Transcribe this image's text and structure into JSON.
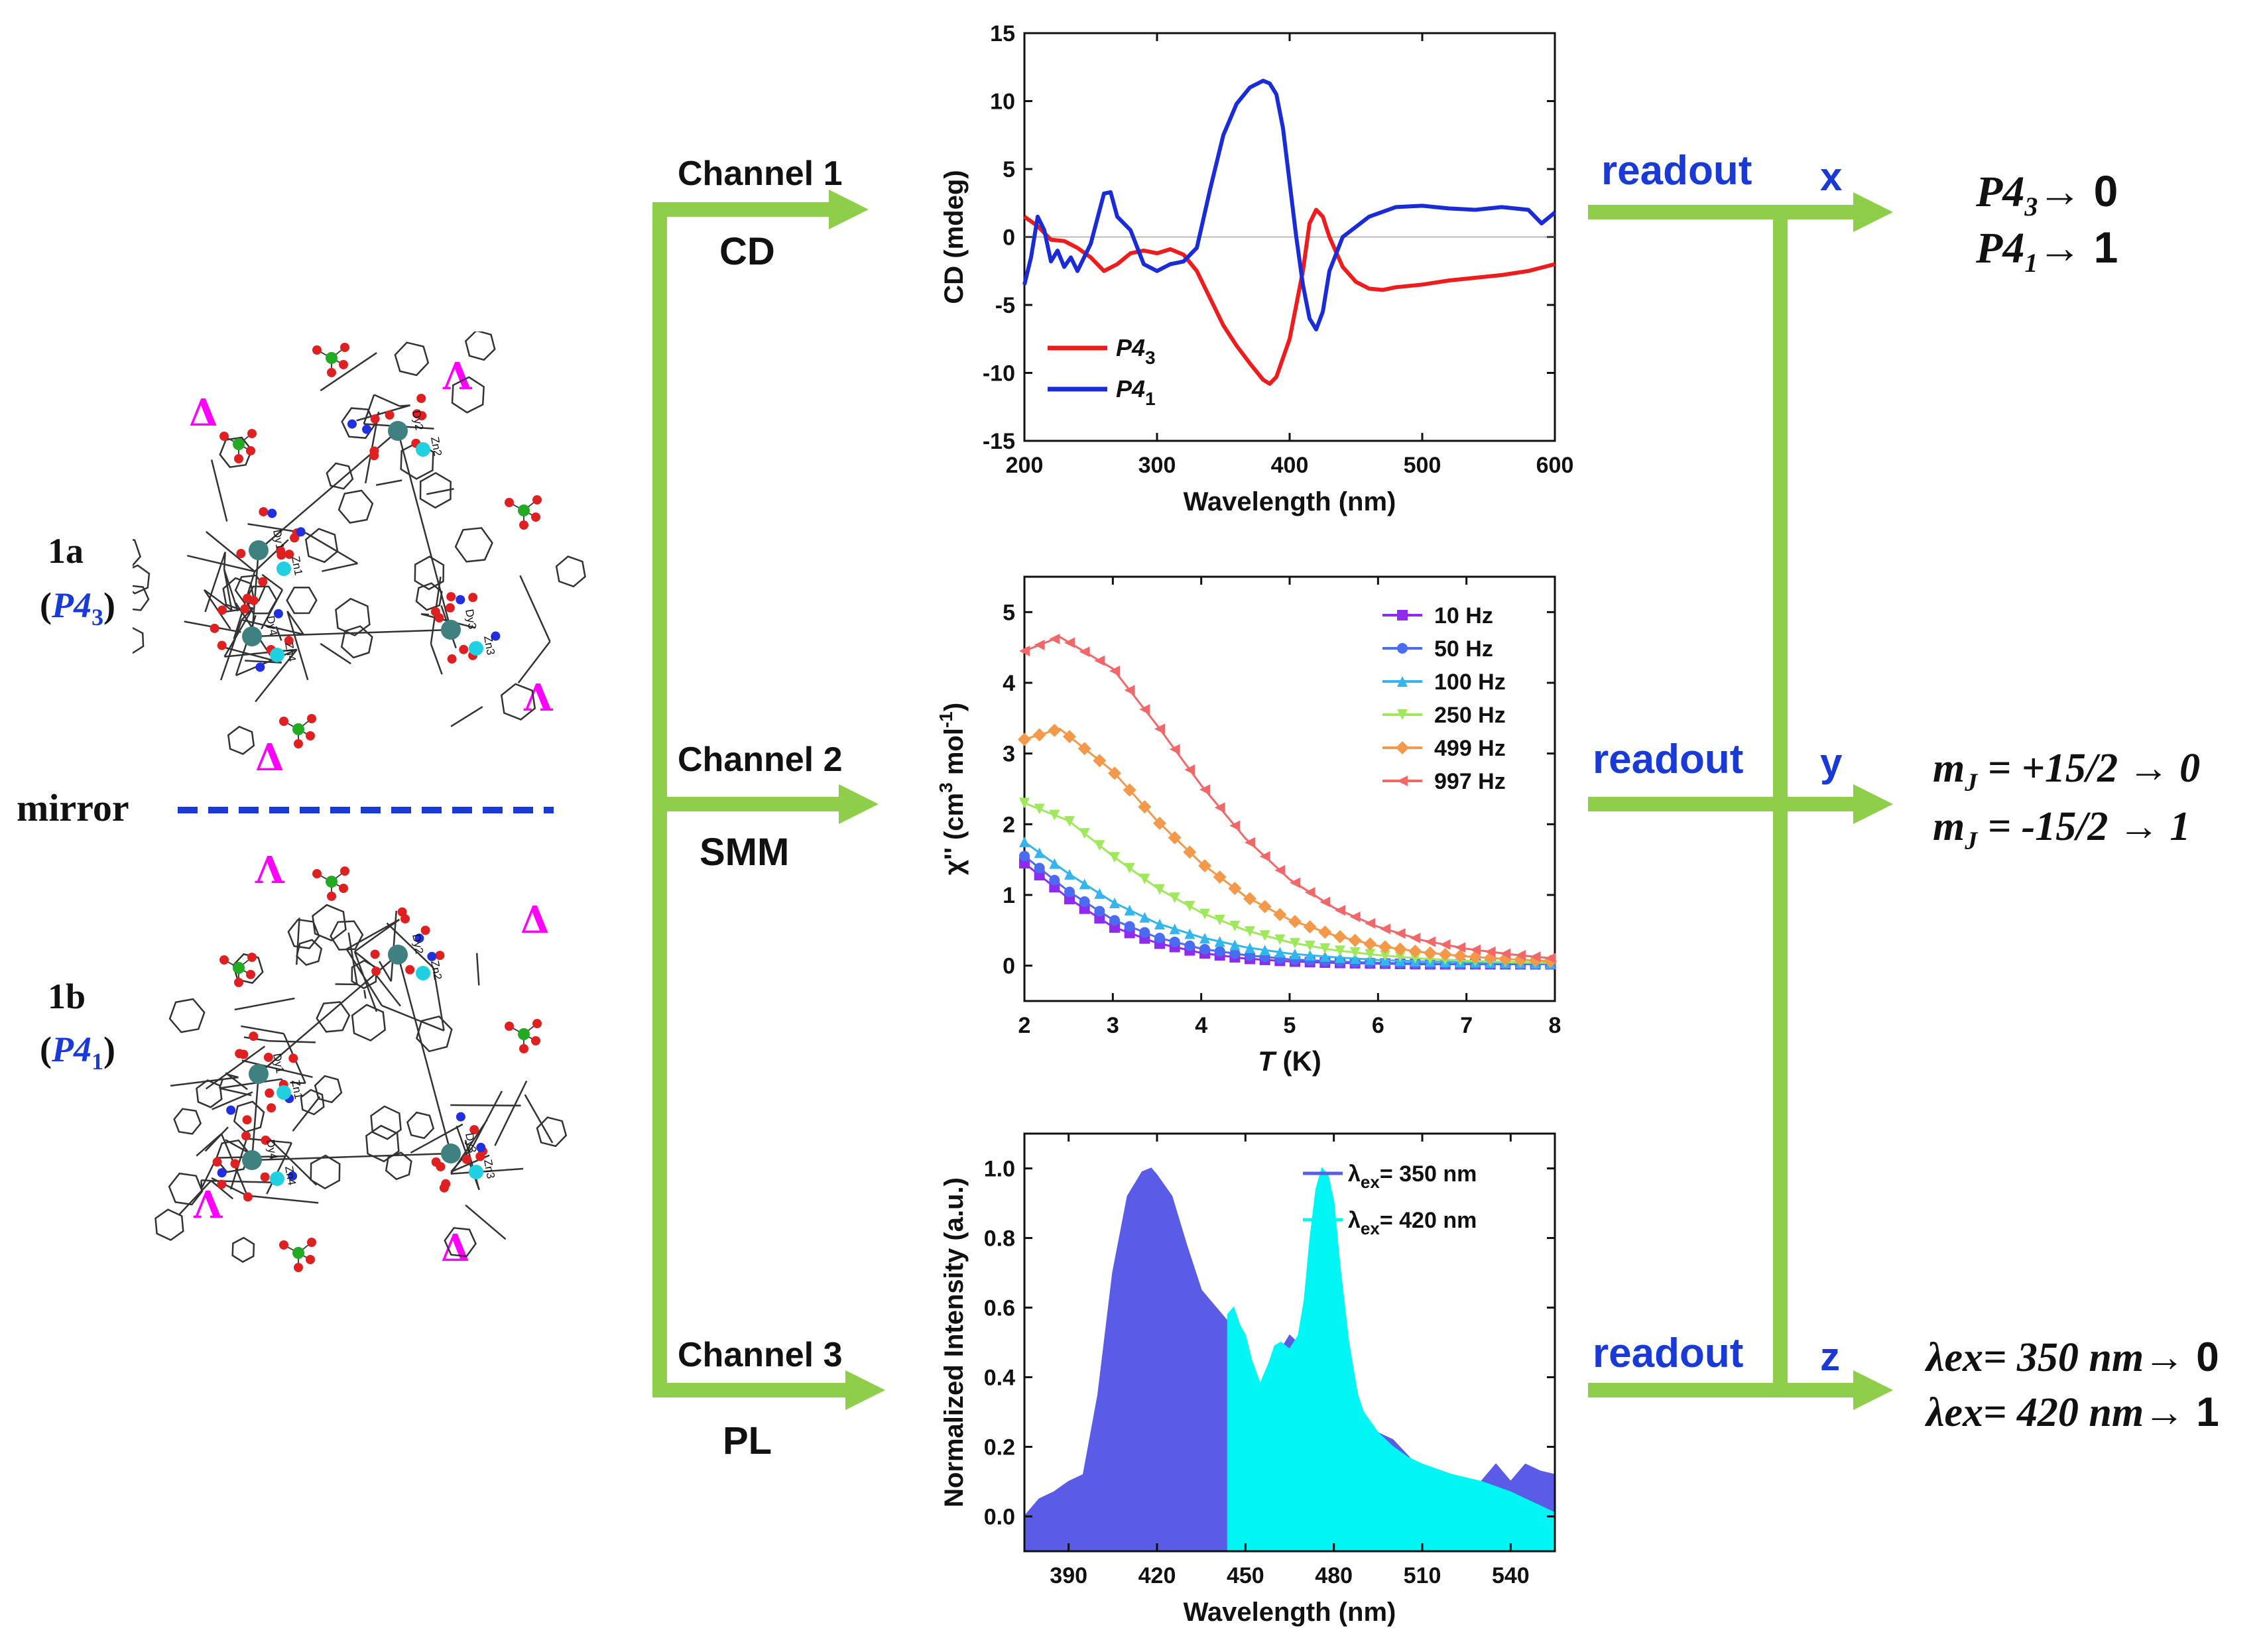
{
  "structures": {
    "label_1a": "1a",
    "space_group_1a_prefix": "(",
    "space_group_1a": "P4",
    "space_group_1a_sub": "3",
    "space_group_1a_suffix": ")",
    "label_1b": "1b",
    "space_group_1b_prefix": "(",
    "space_group_1b": "P4",
    "space_group_1b_sub": "1",
    "space_group_1b_suffix": ")",
    "mirror": "mirror",
    "delta": "Δ",
    "lambda": "Λ",
    "atom_labels_top": [
      "Dy1",
      "Dy2",
      "Dy3",
      "Dy4",
      "Zn1",
      "Zn2",
      "Zn3",
      "Zn4"
    ],
    "atom_labels_bottom": [
      "Dy1",
      "Dy2",
      "Dy3",
      "Dy4",
      "Zn1",
      "Zn2",
      "Zn3",
      "Zn4"
    ]
  },
  "channels": [
    {
      "name": "Channel 1",
      "technique": "CD"
    },
    {
      "name": "Channel 2",
      "technique": "SMM"
    },
    {
      "name": "Channel 3",
      "technique": "PL"
    }
  ],
  "readouts": [
    {
      "label": "readout",
      "variable": "x",
      "line1": "P4",
      "line1_sub": "3",
      "line1_value": "→ 0",
      "line2": "P4",
      "line2_sub": "1",
      "line2_value": "→ 1"
    },
    {
      "label": "readout",
      "variable": "y",
      "line1": "m",
      "line1_sub": "J",
      "line1_value": " = +15/2 → 0",
      "line2": "m",
      "line2_sub": "J",
      "line2_value": " = -15/2 → 1"
    },
    {
      "label": "readout",
      "variable": "z",
      "line1": "λex= 350 nm",
      "line1_sub": "",
      "line1_value": "→ 0",
      "line2": "λex= 420 nm",
      "line2_sub": "",
      "line2_value": "→ 1"
    }
  ],
  "colors": {
    "arrow": "#8fce4a",
    "blue_text": "#1a3ad8",
    "magenta": "#ff00ff"
  },
  "chart_data": [
    {
      "type": "line",
      "xlabel": "Wavelength (nm)",
      "ylabel": "CD (mdeg)",
      "xlim": [
        200,
        600
      ],
      "ylim": [
        -15,
        15
      ],
      "xticks": [
        200,
        300,
        400,
        500,
        600
      ],
      "yticks": [
        -15,
        -10,
        -5,
        0,
        5,
        10,
        15
      ],
      "legend_position": "bottom-left",
      "series": [
        {
          "name": "P4",
          "name_sub": "3",
          "color": "#ee1c1c",
          "x": [
            200,
            210,
            220,
            230,
            240,
            250,
            260,
            270,
            280,
            290,
            300,
            310,
            320,
            330,
            340,
            350,
            360,
            370,
            380,
            385,
            390,
            400,
            410,
            415,
            420,
            425,
            430,
            440,
            450,
            460,
            470,
            480,
            500,
            520,
            540,
            560,
            580,
            600
          ],
          "y": [
            1.5,
            0.8,
            -0.2,
            -0.3,
            -0.8,
            -1.5,
            -2.5,
            -2.0,
            -1.2,
            -1.0,
            -1.2,
            -0.9,
            -1.3,
            -2.5,
            -4.5,
            -6.5,
            -8.0,
            -9.3,
            -10.5,
            -10.8,
            -10.3,
            -7.5,
            -2.5,
            1.0,
            2.0,
            1.5,
            0.0,
            -2.2,
            -3.3,
            -3.8,
            -3.9,
            -3.7,
            -3.5,
            -3.2,
            -3.0,
            -2.8,
            -2.5,
            -2.0
          ]
        },
        {
          "name": "P4",
          "name_sub": "1",
          "color": "#1a2bd8",
          "x": [
            200,
            205,
            210,
            215,
            220,
            225,
            230,
            235,
            240,
            250,
            260,
            265,
            270,
            280,
            290,
            300,
            310,
            320,
            330,
            340,
            350,
            360,
            370,
            380,
            385,
            390,
            395,
            400,
            405,
            410,
            415,
            420,
            425,
            430,
            440,
            460,
            480,
            500,
            520,
            540,
            560,
            580,
            590,
            600
          ],
          "y": [
            -3.5,
            -1.5,
            1.5,
            0.5,
            -1.8,
            -1.0,
            -2.2,
            -1.5,
            -2.5,
            -0.5,
            3.2,
            3.3,
            1.5,
            0.5,
            -2.0,
            -2.5,
            -2.0,
            -1.8,
            -0.8,
            3.5,
            7.5,
            9.8,
            11.0,
            11.5,
            11.3,
            10.5,
            8.0,
            4.0,
            0.0,
            -3.5,
            -6.0,
            -6.8,
            -5.5,
            -2.5,
            0.0,
            1.5,
            2.2,
            2.3,
            2.1,
            2.0,
            2.2,
            2.0,
            1.0,
            1.8
          ]
        }
      ]
    },
    {
      "type": "line",
      "xlabel": "T (K)",
      "xlabel_italic": "T",
      "xlabel_rest": " (K)",
      "ylabel": "χ'' (cm³ mol⁻¹)",
      "ylabel_main": "χ'' (cm",
      "ylabel_sup1": "3",
      "ylabel_mid": " mol",
      "ylabel_sup2": "-1",
      "ylabel_end": ")",
      "xlim": [
        2,
        8
      ],
      "ylim": [
        -0.5,
        5.5
      ],
      "xticks": [
        2,
        3,
        4,
        5,
        6,
        7,
        8
      ],
      "yticks": [
        0,
        1,
        2,
        3,
        4,
        5
      ],
      "legend_position": "top-right",
      "series": [
        {
          "name": "10 Hz",
          "color": "#8f2bef",
          "marker": "square",
          "x": [
            2.0,
            2.5,
            3.0,
            3.5,
            4.0,
            4.5,
            5.0,
            5.5,
            6.0,
            6.5,
            7.0,
            7.5,
            8.0
          ],
          "y": [
            1.45,
            0.95,
            0.55,
            0.32,
            0.18,
            0.1,
            0.06,
            0.04,
            0.03,
            0.02,
            0.02,
            0.02,
            0.02
          ]
        },
        {
          "name": "50 Hz",
          "color": "#4a6cf0",
          "marker": "circle",
          "x": [
            2.0,
            2.5,
            3.0,
            3.5,
            4.0,
            4.5,
            5.0,
            5.5,
            6.0,
            6.5,
            7.0,
            7.5,
            8.0
          ],
          "y": [
            1.55,
            1.05,
            0.65,
            0.4,
            0.24,
            0.15,
            0.09,
            0.06,
            0.04,
            0.03,
            0.02,
            0.02,
            0.02
          ]
        },
        {
          "name": "100 Hz",
          "color": "#35b5ee",
          "marker": "triangle",
          "x": [
            2.0,
            2.5,
            3.0,
            3.5,
            4.0,
            4.5,
            5.0,
            5.5,
            6.0,
            6.5,
            7.0,
            7.5,
            8.0
          ],
          "y": [
            1.75,
            1.3,
            0.9,
            0.6,
            0.4,
            0.26,
            0.17,
            0.12,
            0.08,
            0.06,
            0.05,
            0.04,
            0.03
          ]
        },
        {
          "name": "250 Hz",
          "color": "#9ee85a",
          "marker": "triangle-down",
          "x": [
            2.0,
            2.5,
            3.0,
            3.5,
            4.0,
            4.5,
            5.0,
            5.5,
            6.0,
            6.5,
            7.0,
            7.5,
            8.0
          ],
          "y": [
            2.3,
            2.05,
            1.55,
            1.1,
            0.75,
            0.5,
            0.33,
            0.22,
            0.15,
            0.1,
            0.07,
            0.05,
            0.04
          ]
        },
        {
          "name": "499 Hz",
          "color": "#f4994a",
          "marker": "diamond",
          "x": [
            2.0,
            2.4,
            3.0,
            3.5,
            4.0,
            4.5,
            5.0,
            5.5,
            6.0,
            6.5,
            7.0,
            7.5,
            8.0
          ],
          "y": [
            3.2,
            3.35,
            2.75,
            2.05,
            1.45,
            0.98,
            0.65,
            0.43,
            0.28,
            0.19,
            0.13,
            0.09,
            0.06
          ]
        },
        {
          "name": "997 Hz",
          "color": "#f0686a",
          "marker": "triangle-left",
          "x": [
            2.0,
            2.4,
            3.0,
            3.5,
            4.0,
            4.5,
            5.0,
            5.5,
            6.0,
            6.5,
            7.0,
            7.5,
            8.0
          ],
          "y": [
            4.45,
            4.65,
            4.2,
            3.4,
            2.55,
            1.8,
            1.22,
            0.82,
            0.55,
            0.36,
            0.24,
            0.16,
            0.1
          ]
        }
      ]
    },
    {
      "type": "area",
      "xlabel": "Wavelength (nm)",
      "ylabel": "Normalized Intensity (a.u.)",
      "xlim": [
        375,
        555
      ],
      "ylim": [
        -0.1,
        1.1
      ],
      "xticks": [
        390,
        420,
        450,
        480,
        510,
        540
      ],
      "yticks": [
        0.0,
        0.2,
        0.4,
        0.6,
        0.8,
        1.0
      ],
      "legend_position": "top-right",
      "series": [
        {
          "name": "λex= 350 nm",
          "legend_prefix": "λ",
          "legend_sub": "ex",
          "legend_rest": "= 350 nm",
          "color": "#5a5ce8",
          "x": [
            375,
            380,
            385,
            390,
            395,
            400,
            405,
            410,
            415,
            418,
            420,
            425,
            430,
            435,
            440,
            445,
            450,
            455,
            460,
            465,
            470,
            475,
            480,
            485,
            490,
            495,
            500,
            510,
            520,
            530,
            535,
            540,
            545,
            550,
            555
          ],
          "y": [
            0.0,
            0.05,
            0.07,
            0.1,
            0.12,
            0.35,
            0.7,
            0.92,
            0.99,
            1.0,
            0.98,
            0.92,
            0.78,
            0.65,
            0.6,
            0.55,
            0.48,
            0.38,
            0.45,
            0.52,
            0.48,
            0.4,
            0.34,
            0.3,
            0.28,
            0.24,
            0.22,
            0.13,
            0.1,
            0.1,
            0.15,
            0.1,
            0.15,
            0.13,
            0.12
          ]
        },
        {
          "name": "λex= 420 nm",
          "legend_prefix": "λ",
          "legend_sub": "ex",
          "legend_rest": "= 420 nm",
          "color": "#00f5f5",
          "x": [
            444,
            446,
            448,
            450,
            452,
            455,
            458,
            460,
            462,
            465,
            468,
            470,
            472,
            474,
            476,
            478,
            480,
            482,
            485,
            488,
            490,
            495,
            500,
            505,
            510,
            520,
            530,
            540,
            550,
            555
          ],
          "y": [
            0.58,
            0.6,
            0.55,
            0.52,
            0.45,
            0.38,
            0.44,
            0.49,
            0.5,
            0.48,
            0.52,
            0.62,
            0.8,
            0.94,
            1.0,
            0.98,
            0.9,
            0.72,
            0.5,
            0.35,
            0.3,
            0.24,
            0.2,
            0.17,
            0.15,
            0.12,
            0.1,
            0.07,
            0.03,
            0.01
          ]
        }
      ]
    }
  ]
}
